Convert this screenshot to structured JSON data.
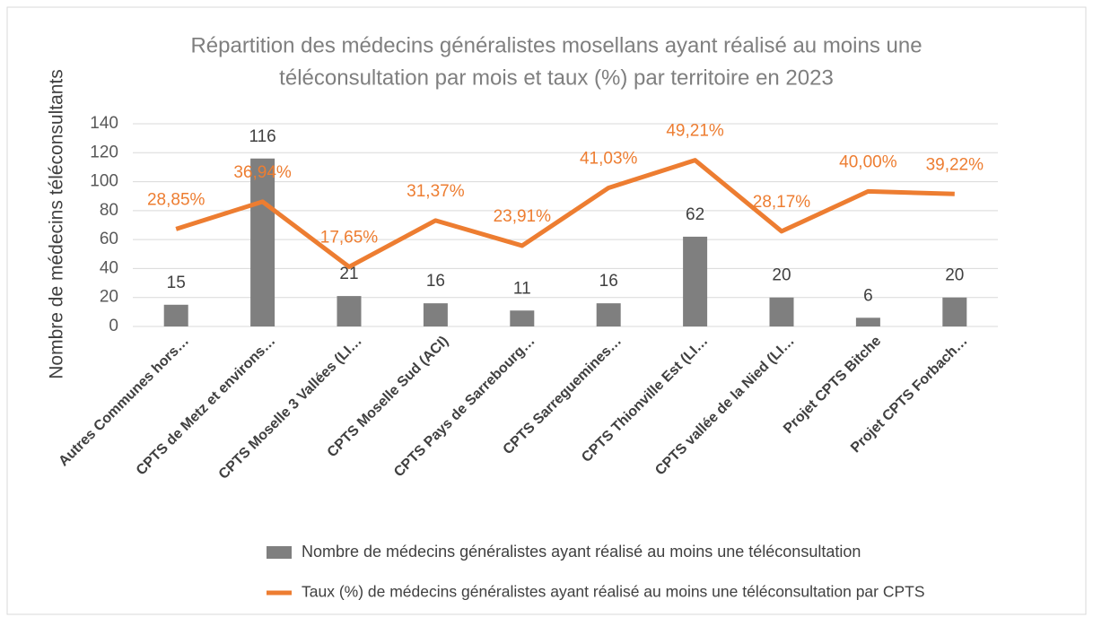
{
  "chart_data": {
    "type": "bar_line",
    "title": [
      "Répartition des médecins généralistes mosellans ayant réalisé au moins une",
      "téléconsultation par mois et taux (%) par territoire en 2023"
    ],
    "ylabel": "Nombre de médecins téléconsultants",
    "categories": [
      "Autres Communes hors…",
      "CPTS de Metz et environs…",
      "CPTS Moselle 3 Vallées (LI…",
      "CPTS Moselle Sud (ACI)",
      "CPTS Pays de Sarrebourg…",
      "CPTS Sarreguemines…",
      "CPTS Thionville Est (LI…",
      "CPTS vallée de la Nied (LI…",
      "Projet CPTS Bitche",
      "Projet CPTS Forbach…"
    ],
    "series": [
      {
        "name": "Nombre de médecins généralistes ayant réalisé au moins une téléconsultation",
        "type": "bar",
        "color": "#7f7f7f",
        "values": [
          15,
          116,
          21,
          16,
          11,
          16,
          62,
          20,
          6,
          20
        ]
      },
      {
        "name": "Taux (%) de médecins généralistes ayant réalisé au moins une téléconsultation par CPTS",
        "type": "line",
        "axis": "y2",
        "color": "#ed7d31",
        "values": [
          28.85,
          36.94,
          17.65,
          31.37,
          23.91,
          41.03,
          49.21,
          28.17,
          40.0,
          39.22
        ],
        "value_labels": [
          "28,85%",
          "36,94%",
          "17,65%",
          "31,37%",
          "23,91%",
          "41,03%",
          "49,21%",
          "28,17%",
          "40,00%",
          "39,22%"
        ]
      }
    ],
    "ylim": [
      0,
      140
    ],
    "yticks": [
      0,
      20,
      40,
      60,
      80,
      100,
      120,
      140
    ],
    "y2lim": [
      0,
      60
    ],
    "grid": true,
    "legend": "bottom"
  }
}
